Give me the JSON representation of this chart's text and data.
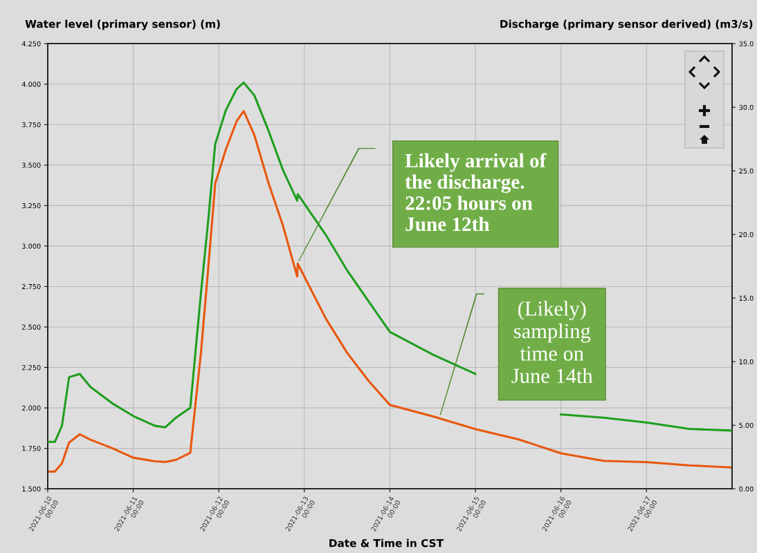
{
  "chart_data": {
    "type": "line",
    "ylabel": "Water level (primary sensor) (m)",
    "y2label": "Discharge (primary sensor derived) (m3/s)",
    "xlabel": "Date & Time in CST",
    "x": [
      "2021-06-10T00:00",
      "2021-06-10T02:00",
      "2021-06-10T04:00",
      "2021-06-10T06:00",
      "2021-06-10T09:00",
      "2021-06-10T12:00",
      "2021-06-10T18:00",
      "2021-06-11T00:00",
      "2021-06-11T06:00",
      "2021-06-11T09:00",
      "2021-06-11T12:00",
      "2021-06-11T16:00",
      "2021-06-11T19:00",
      "2021-06-11T21:00",
      "2021-06-11T23:00",
      "2021-06-12T02:00",
      "2021-06-12T05:00",
      "2021-06-12T07:00",
      "2021-06-12T10:00",
      "2021-06-12T14:00",
      "2021-06-12T18:00",
      "2021-06-12T22:00",
      "2021-06-12T22:10",
      "2021-06-13T06:00",
      "2021-06-13T12:00",
      "2021-06-13T18:00",
      "2021-06-14T00:00",
      "2021-06-14T12:00",
      "2021-06-15T00:00",
      "2021-06-15T12:00",
      "2021-06-16T00:00",
      "2021-06-16T12:00",
      "2021-06-17T00:00",
      "2021-06-17T12:00",
      "2021-06-18T00:00"
    ],
    "series": [
      {
        "color": "#1e9e1e",
        "values": [
          1.79,
          1.79,
          1.89,
          2.19,
          2.21,
          2.13,
          2.03,
          1.95,
          1.89,
          1.88,
          1.94,
          2.0,
          2.71,
          3.15,
          3.63,
          3.84,
          3.97,
          4.01,
          3.93,
          3.71,
          3.47,
          3.28,
          3.32,
          3.07,
          2.85,
          2.66,
          2.47,
          2.33,
          2.21,
          null,
          1.96,
          1.94,
          1.91,
          1.87,
          1.86
        ]
      },
      {
        "color": "#e8560c",
        "axis": "y2",
        "values": [
          1.36,
          1.36,
          2.01,
          3.64,
          4.29,
          3.86,
          3.21,
          2.45,
          2.17,
          2.12,
          2.28,
          2.83,
          10.7,
          17.2,
          24.0,
          26.7,
          28.9,
          29.7,
          27.8,
          24.0,
          20.7,
          16.7,
          17.7,
          13.4,
          10.7,
          8.5,
          6.6,
          5.7,
          4.7,
          3.9,
          2.8,
          2.2,
          2.1,
          1.85,
          1.68
        ]
      }
    ],
    "xlim": [
      "2021-06-10T00:00",
      "2021-06-18T00:00"
    ],
    "xticks": [
      {
        "value": "2021-06-10T00:00",
        "label": "2021-06-10\n00:00"
      },
      {
        "value": "2021-06-11T00:00",
        "label": "2021-06-11\n00:00"
      },
      {
        "value": "2021-06-12T00:00",
        "label": "2021-06-12\n00:00"
      },
      {
        "value": "2021-06-13T00:00",
        "label": "2021-06-13\n00:00"
      },
      {
        "value": "2021-06-14T00:00",
        "label": "2021-06-14\n00:00"
      },
      {
        "value": "2021-06-15T00:00",
        "label": "2021-06-15\n00:00"
      },
      {
        "value": "2021-06-16T00:00",
        "label": "2021-06-16\n00:00"
      },
      {
        "value": "2021-06-17T00:00",
        "label": "2021-06-17\n00:00"
      }
    ],
    "ylim": [
      1.5,
      4.25
    ],
    "yticks": [
      {
        "value": 1.5,
        "label": "1.500"
      },
      {
        "value": 1.75,
        "label": "1.750"
      },
      {
        "value": 2.0,
        "label": "2.000"
      },
      {
        "value": 2.25,
        "label": "2.250"
      },
      {
        "value": 2.5,
        "label": "2.500"
      },
      {
        "value": 2.75,
        "label": "2.750"
      },
      {
        "value": 3.0,
        "label": "3.000"
      },
      {
        "value": 3.25,
        "label": "3.250"
      },
      {
        "value": 3.5,
        "label": "3.500"
      },
      {
        "value": 3.75,
        "label": "3.750"
      },
      {
        "value": 4.0,
        "label": "4.000"
      },
      {
        "value": 4.25,
        "label": "4.250"
      }
    ],
    "y2lim": [
      0,
      35
    ],
    "y2ticks": [
      {
        "value": 0,
        "label": "0.00"
      },
      {
        "value": 5,
        "label": "5.00"
      },
      {
        "value": 10,
        "label": "10.0"
      },
      {
        "value": 15,
        "label": "15.0"
      },
      {
        "value": 20,
        "label": "20.0"
      },
      {
        "value": 25,
        "label": "25.0"
      },
      {
        "value": 30,
        "label": "30.0"
      },
      {
        "value": 35,
        "label": "35.0"
      }
    ],
    "annotations": [
      "Likely arrival of\nthe discharge.\n22:05 hours on\nJune 12th",
      "(Likely)\nsampling\ntime on\nJune 14th"
    ],
    "grid": true,
    "line_style": "solid",
    "marker": "none"
  }
}
